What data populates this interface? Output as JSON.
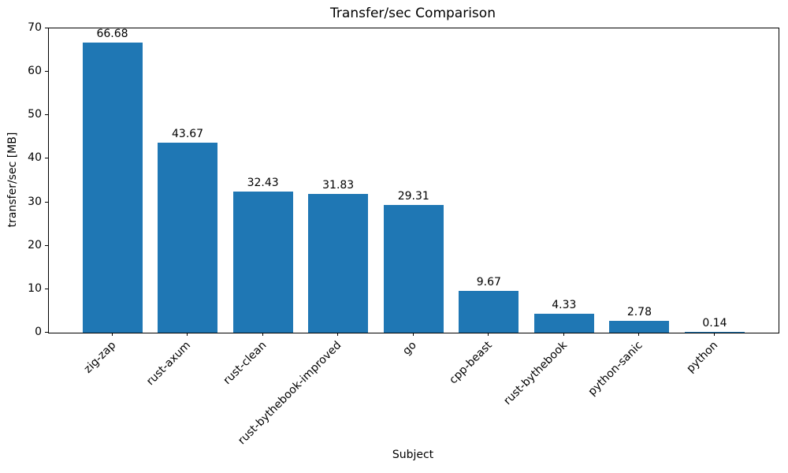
{
  "chart_data": {
    "type": "bar",
    "title": "Transfer/sec Comparison",
    "xlabel": "Subject",
    "ylabel": "transfer/sec [MB]",
    "categories": [
      "zig-zap",
      "rust-axum",
      "rust-clean",
      "rust-bythebook-improved",
      "go",
      "cpp-beast",
      "rust-bythebook",
      "python-sanic",
      "python"
    ],
    "values": [
      66.68,
      43.67,
      32.43,
      31.83,
      29.31,
      9.67,
      4.33,
      2.78,
      0.14
    ],
    "bar_labels": [
      "66.68",
      "43.67",
      "32.43",
      "31.83",
      "29.31",
      "9.67",
      "4.33",
      "2.78",
      "0.14"
    ],
    "ylim": [
      0,
      70
    ],
    "yticks": [
      0,
      10,
      20,
      30,
      40,
      50,
      60,
      70
    ],
    "bar_color": "#1f77b4",
    "grid": false,
    "legend": null
  }
}
